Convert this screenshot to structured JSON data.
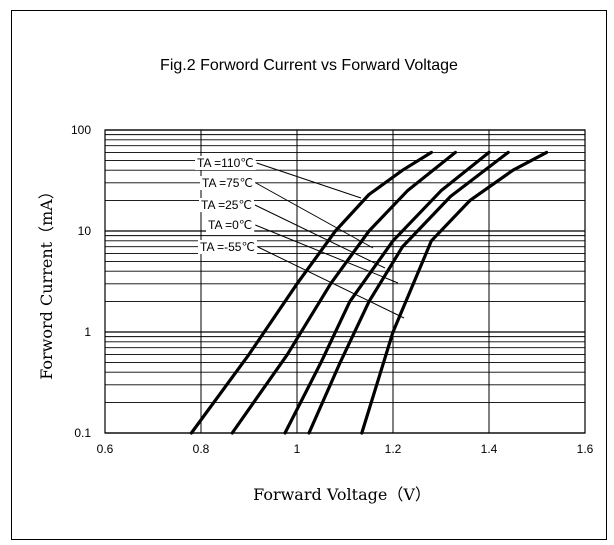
{
  "chart_data": {
    "type": "line",
    "title": "Fig.2  Forword Current vs Forward Voltage",
    "xlabel": "Forward Voltage（V）",
    "ylabel": "Forword Current（mA）",
    "xlim": [
      0.6,
      1.6
    ],
    "ylim": [
      0.1,
      100
    ],
    "yscale": "log",
    "grid": true,
    "x_ticks": [
      "0.6",
      "0.8",
      "1",
      "1.2",
      "1.4",
      "1.6"
    ],
    "y_ticks": [
      "0.1",
      "1",
      "10",
      "100"
    ],
    "series": [
      {
        "name": "TA =110℃",
        "x": [
          0.78,
          0.9,
          1.0,
          1.08,
          1.15,
          1.22,
          1.28
        ],
        "y": [
          0.1,
          0.6,
          3.0,
          10,
          23,
          40,
          60
        ]
      },
      {
        "name": "TA =75℃",
        "x": [
          0.865,
          0.98,
          1.07,
          1.15,
          1.23,
          1.33
        ],
        "y": [
          0.1,
          0.6,
          3.0,
          10,
          25,
          60
        ]
      },
      {
        "name": "TA =25℃",
        "x": [
          0.975,
          1.05,
          1.11,
          1.2,
          1.3,
          1.4
        ],
        "y": [
          0.1,
          0.5,
          2.0,
          8,
          25,
          60
        ]
      },
      {
        "name": "TA =0℃",
        "x": [
          1.025,
          1.09,
          1.15,
          1.22,
          1.32,
          1.44
        ],
        "y": [
          0.1,
          0.5,
          2.0,
          7,
          22,
          60
        ]
      },
      {
        "name": "TA =-55℃",
        "x": [
          1.135,
          1.2,
          1.28,
          1.36,
          1.45,
          1.52
        ],
        "y": [
          0.1,
          1.0,
          8,
          20,
          40,
          60
        ]
      }
    ],
    "legend_position": "upper-left inside plot, leaders pointing to curves"
  }
}
